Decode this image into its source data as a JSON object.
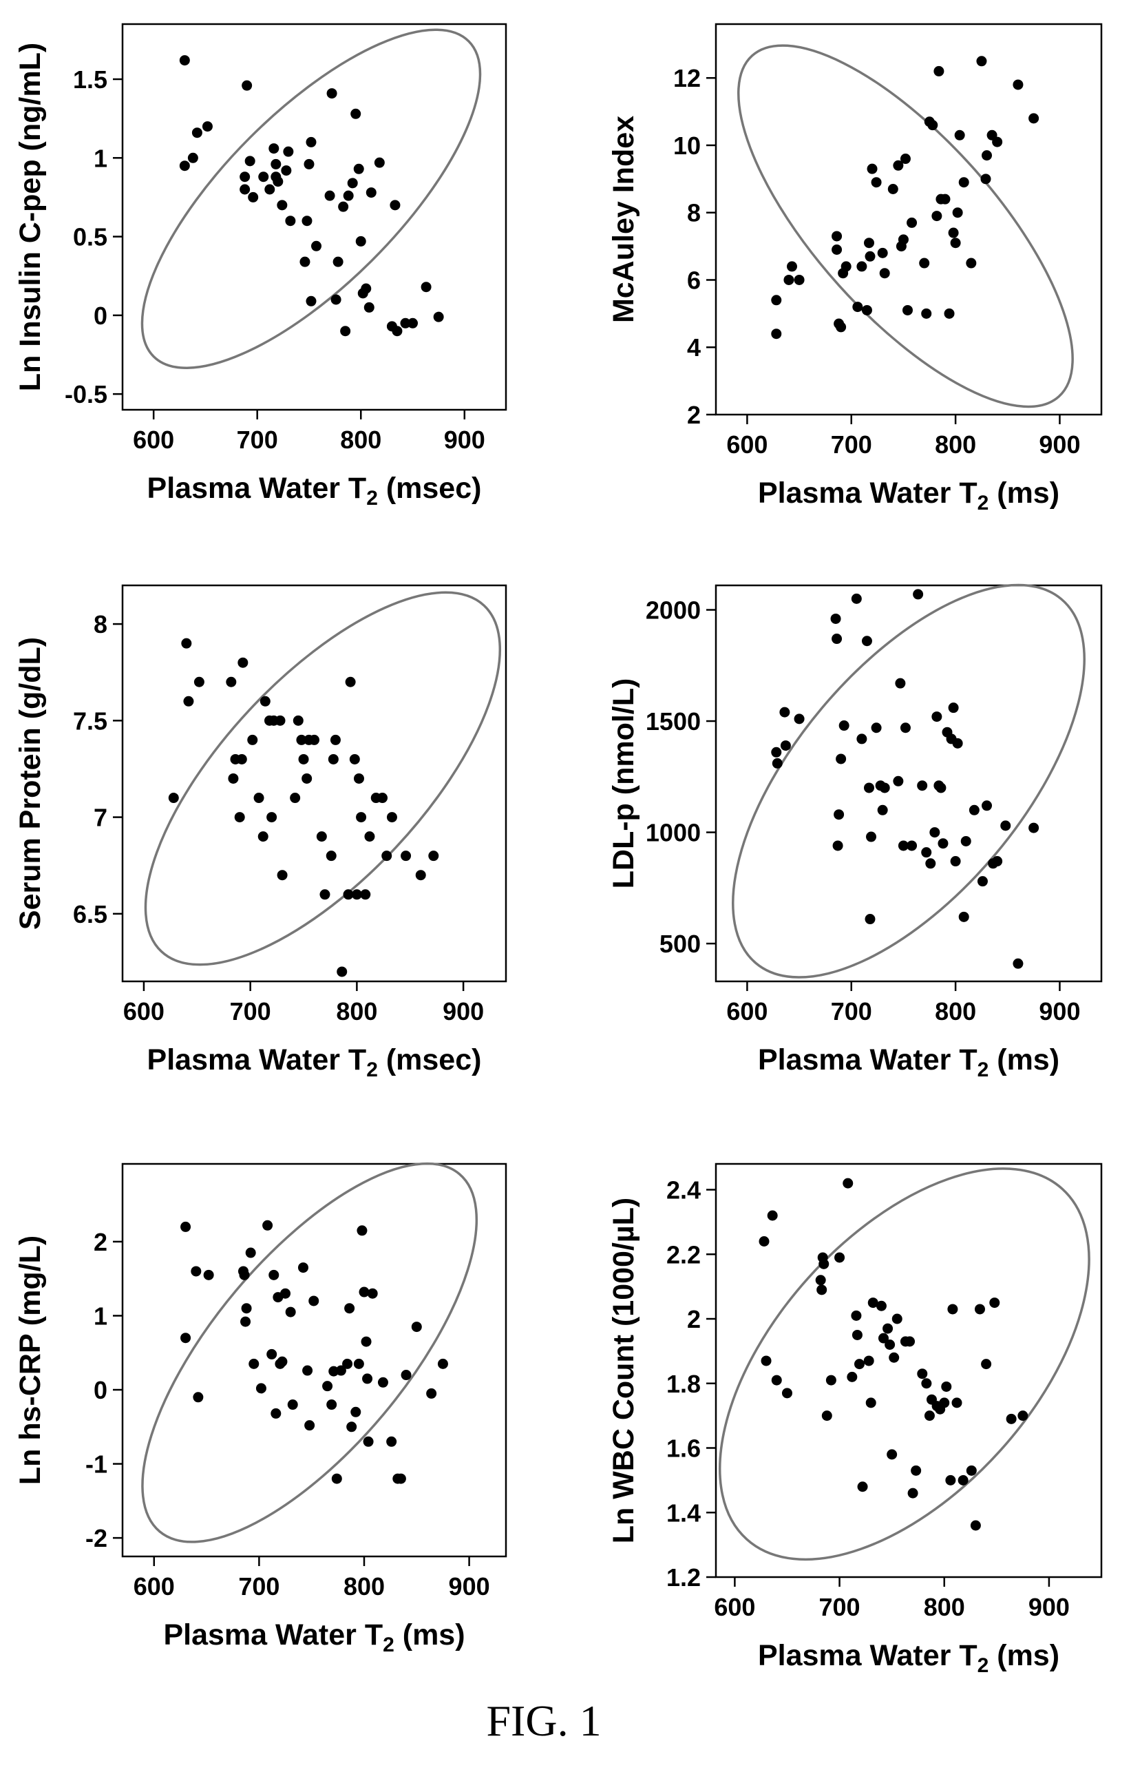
{
  "figure": {
    "caption": "FIG. 1"
  },
  "chart_data": [
    {
      "type": "scatter",
      "xlabel": "Plasma Water T",
      "xlabel_sub": "2",
      "xlabel_unit": " (msec)",
      "ylabel": "Ln Insulin C-pep (ng/mL)",
      "xlim": [
        570,
        940
      ],
      "ylim": [
        -0.6,
        1.85
      ],
      "xticks": [
        "600",
        "700",
        "800",
        "900"
      ],
      "yticks": [
        "-0.5",
        "0",
        "0.5",
        "1",
        "1.5"
      ],
      "ytick_values": [
        -0.5,
        0,
        0.5,
        1,
        1.5
      ],
      "ellipse": {
        "center": [
          752,
          0.74
        ],
        "semi_axes": [
          215,
          0.55
        ],
        "angle_deg": -45
      },
      "points": [
        [
          630,
          1.62
        ],
        [
          630,
          0.95
        ],
        [
          638,
          1.0
        ],
        [
          642,
          1.16
        ],
        [
          652,
          1.2
        ],
        [
          688,
          0.88
        ],
        [
          688,
          0.8
        ],
        [
          690,
          1.46
        ],
        [
          693,
          0.98
        ],
        [
          696,
          0.75
        ],
        [
          706,
          0.88
        ],
        [
          712,
          0.8
        ],
        [
          716,
          1.06
        ],
        [
          718,
          0.96
        ],
        [
          718,
          0.88
        ],
        [
          720,
          0.85
        ],
        [
          724,
          0.7
        ],
        [
          728,
          0.92
        ],
        [
          730,
          1.04
        ],
        [
          732,
          0.6
        ],
        [
          746,
          0.34
        ],
        [
          748,
          0.6
        ],
        [
          750,
          0.96
        ],
        [
          752,
          1.1
        ],
        [
          752,
          0.09
        ],
        [
          757,
          0.44
        ],
        [
          770,
          0.76
        ],
        [
          772,
          1.41
        ],
        [
          776,
          0.1
        ],
        [
          778,
          0.34
        ],
        [
          783,
          0.69
        ],
        [
          785,
          -0.1
        ],
        [
          788,
          0.76
        ],
        [
          792,
          0.84
        ],
        [
          795,
          1.28
        ],
        [
          798,
          0.93
        ],
        [
          800,
          0.47
        ],
        [
          802,
          0.14
        ],
        [
          805,
          0.17
        ],
        [
          808,
          0.05
        ],
        [
          810,
          0.78
        ],
        [
          818,
          0.97
        ],
        [
          830,
          -0.07
        ],
        [
          833,
          0.7
        ],
        [
          835,
          -0.1
        ],
        [
          843,
          -0.05
        ],
        [
          850,
          -0.05
        ],
        [
          863,
          0.18
        ],
        [
          875,
          -0.01
        ]
      ]
    },
    {
      "type": "scatter",
      "xlabel": "Plasma Water T",
      "xlabel_sub": "2",
      "xlabel_unit": " (ms)",
      "ylabel": "McAuley Index",
      "xlim": [
        570,
        940
      ],
      "ylim": [
        2.0,
        13.6
      ],
      "xticks": [
        "600",
        "700",
        "800",
        "900"
      ],
      "yticks": [
        "2",
        "4",
        "6",
        "8",
        "10",
        "12"
      ],
      "ytick_values": [
        2,
        4,
        6,
        8,
        10,
        12
      ],
      "ellipse": {
        "center": [
          752,
          7.6
        ],
        "semi_axes": [
          220,
          2.65
        ],
        "angle_deg": 48
      },
      "points": [
        [
          628,
          5.4
        ],
        [
          628,
          4.4
        ],
        [
          640,
          6.0
        ],
        [
          643,
          6.4
        ],
        [
          650,
          6.0
        ],
        [
          686,
          7.3
        ],
        [
          686,
          6.9
        ],
        [
          688,
          4.7
        ],
        [
          690,
          4.6
        ],
        [
          692,
          6.2
        ],
        [
          695,
          6.4
        ],
        [
          706,
          5.2
        ],
        [
          710,
          6.4
        ],
        [
          715,
          5.1
        ],
        [
          717,
          7.1
        ],
        [
          718,
          6.7
        ],
        [
          720,
          9.3
        ],
        [
          724,
          8.9
        ],
        [
          730,
          6.8
        ],
        [
          732,
          6.2
        ],
        [
          740,
          8.7
        ],
        [
          745,
          9.4
        ],
        [
          748,
          7.0
        ],
        [
          750,
          7.2
        ],
        [
          752,
          9.6
        ],
        [
          754,
          5.1
        ],
        [
          758,
          7.7
        ],
        [
          770,
          6.5
        ],
        [
          772,
          5.0
        ],
        [
          775,
          10.7
        ],
        [
          778,
          10.6
        ],
        [
          782,
          7.9
        ],
        [
          784,
          12.2
        ],
        [
          786,
          8.4
        ],
        [
          790,
          8.4
        ],
        [
          794,
          5.0
        ],
        [
          798,
          7.4
        ],
        [
          800,
          7.1
        ],
        [
          802,
          8.0
        ],
        [
          804,
          10.3
        ],
        [
          808,
          8.9
        ],
        [
          815,
          6.5
        ],
        [
          825,
          12.5
        ],
        [
          829,
          9.0
        ],
        [
          830,
          9.7
        ],
        [
          835,
          10.3
        ],
        [
          840,
          10.1
        ],
        [
          860,
          11.8
        ],
        [
          875,
          10.8
        ]
      ]
    },
    {
      "type": "scatter",
      "xlabel": "Plasma Water T",
      "xlabel_sub": "2",
      "xlabel_unit": " (msec)",
      "ylabel": "Serum Protein (g/dL)",
      "xlim": [
        580,
        940
      ],
      "ylim": [
        6.15,
        8.2
      ],
      "xticks": [
        "600",
        "700",
        "800",
        "900"
      ],
      "yticks": [
        "6.5",
        "7",
        "7.5",
        "8"
      ],
      "ytick_values": [
        6.5,
        7,
        7.5,
        8
      ],
      "ellipse": {
        "center": [
          768,
          7.2
        ],
        "semi_axes": [
          222,
          0.52
        ],
        "angle_deg": -47
      },
      "points": [
        [
          628,
          7.1
        ],
        [
          640,
          7.9
        ],
        [
          642,
          7.6
        ],
        [
          652,
          7.7
        ],
        [
          682,
          7.7
        ],
        [
          684,
          7.2
        ],
        [
          686,
          7.3
        ],
        [
          690,
          7.0
        ],
        [
          692,
          7.3
        ],
        [
          693,
          7.8
        ],
        [
          702,
          7.4
        ],
        [
          708,
          7.1
        ],
        [
          712,
          6.9
        ],
        [
          714,
          7.6
        ],
        [
          718,
          7.5
        ],
        [
          720,
          7.0
        ],
        [
          722,
          7.5
        ],
        [
          728,
          7.5
        ],
        [
          730,
          6.7
        ],
        [
          742,
          7.1
        ],
        [
          745,
          7.5
        ],
        [
          748,
          7.4
        ],
        [
          750,
          7.3
        ],
        [
          753,
          7.2
        ],
        [
          755,
          7.4
        ],
        [
          760,
          7.4
        ],
        [
          767,
          6.9
        ],
        [
          770,
          6.6
        ],
        [
          776,
          6.8
        ],
        [
          778,
          7.3
        ],
        [
          780,
          7.4
        ],
        [
          786,
          6.2
        ],
        [
          792,
          6.6
        ],
        [
          794,
          7.7
        ],
        [
          798,
          7.3
        ],
        [
          800,
          6.6
        ],
        [
          802,
          7.2
        ],
        [
          804,
          7.0
        ],
        [
          808,
          6.6
        ],
        [
          812,
          6.9
        ],
        [
          818,
          7.1
        ],
        [
          824,
          7.1
        ],
        [
          828,
          6.8
        ],
        [
          833,
          7.0
        ],
        [
          846,
          6.8
        ],
        [
          860,
          6.7
        ],
        [
          872,
          6.8
        ]
      ]
    },
    {
      "type": "scatter",
      "xlabel": "Plasma Water T",
      "xlabel_sub": "2",
      "xlabel_unit": " (ms)",
      "ylabel": "LDL-p (nmol/L)",
      "xlim": [
        570,
        940
      ],
      "ylim": [
        330,
        2110
      ],
      "xticks": [
        "600",
        "700",
        "800",
        "900"
      ],
      "yticks": [
        "500",
        "1000",
        "1500",
        "2000"
      ],
      "ytick_values": [
        500,
        1000,
        1500,
        2000
      ],
      "ellipse": {
        "center": [
          755,
          1230
        ],
        "semi_axes": [
          228,
          510
        ],
        "angle_deg": -50
      },
      "points": [
        [
          628,
          1360
        ],
        [
          629,
          1310
        ],
        [
          636,
          1540
        ],
        [
          637,
          1390
        ],
        [
          650,
          1510
        ],
        [
          685,
          1960
        ],
        [
          686,
          1870
        ],
        [
          687,
          940
        ],
        [
          688,
          1080
        ],
        [
          690,
          1330
        ],
        [
          693,
          1480
        ],
        [
          705,
          2050
        ],
        [
          710,
          1420
        ],
        [
          715,
          1860
        ],
        [
          717,
          1200
        ],
        [
          718,
          610
        ],
        [
          719,
          980
        ],
        [
          724,
          1470
        ],
        [
          728,
          1210
        ],
        [
          730,
          1100
        ],
        [
          732,
          1200
        ],
        [
          745,
          1230
        ],
        [
          747,
          1670
        ],
        [
          750,
          940
        ],
        [
          752,
          1470
        ],
        [
          758,
          940
        ],
        [
          764,
          2070
        ],
        [
          768,
          1210
        ],
        [
          772,
          910
        ],
        [
          776,
          860
        ],
        [
          780,
          1000
        ],
        [
          782,
          1520
        ],
        [
          784,
          1210
        ],
        [
          786,
          1200
        ],
        [
          788,
          950
        ],
        [
          792,
          1450
        ],
        [
          796,
          1420
        ],
        [
          798,
          1560
        ],
        [
          800,
          870
        ],
        [
          802,
          1400
        ],
        [
          808,
          620
        ],
        [
          810,
          960
        ],
        [
          818,
          1100
        ],
        [
          826,
          780
        ],
        [
          830,
          1120
        ],
        [
          836,
          860
        ],
        [
          840,
          870
        ],
        [
          848,
          1030
        ],
        [
          860,
          410
        ],
        [
          875,
          1020
        ]
      ]
    },
    {
      "type": "scatter",
      "xlabel": "Plasma Water T",
      "xlabel_sub": "2",
      "xlabel_unit": " (ms)",
      "ylabel": "Ln hs-CRP (mg/L)",
      "xlim": [
        570,
        935
      ],
      "ylim": [
        -2.25,
        3.05
      ],
      "xticks": [
        "600",
        "700",
        "800",
        "900"
      ],
      "yticks": [
        "-2",
        "-1",
        "0",
        "1",
        "2"
      ],
      "ytick_values": [
        -2,
        -1,
        0,
        1,
        2
      ],
      "ellipse": {
        "center": [
          748,
          0.5
        ],
        "semi_axes": [
          222,
          1.3
        ],
        "angle_deg": -50
      },
      "points": [
        [
          630,
          2.2
        ],
        [
          630,
          0.7
        ],
        [
          640,
          1.6
        ],
        [
          642,
          -0.1
        ],
        [
          652,
          1.55
        ],
        [
          685,
          1.6
        ],
        [
          686,
          1.55
        ],
        [
          687,
          0.92
        ],
        [
          688,
          1.1
        ],
        [
          692,
          1.85
        ],
        [
          695,
          0.35
        ],
        [
          702,
          0.02
        ],
        [
          708,
          2.22
        ],
        [
          712,
          0.48
        ],
        [
          714,
          1.55
        ],
        [
          716,
          -0.32
        ],
        [
          718,
          1.25
        ],
        [
          720,
          0.35
        ],
        [
          722,
          0.38
        ],
        [
          725,
          1.3
        ],
        [
          730,
          1.05
        ],
        [
          732,
          -0.2
        ],
        [
          742,
          1.65
        ],
        [
          746,
          0.26
        ],
        [
          748,
          -0.48
        ],
        [
          752,
          1.2
        ],
        [
          765,
          0.05
        ],
        [
          769,
          -0.2
        ],
        [
          771,
          0.25
        ],
        [
          774,
          -1.2
        ],
        [
          778,
          0.26
        ],
        [
          784,
          0.35
        ],
        [
          786,
          1.1
        ],
        [
          788,
          -0.5
        ],
        [
          792,
          -0.3
        ],
        [
          795,
          0.35
        ],
        [
          798,
          2.15
        ],
        [
          800,
          1.32
        ],
        [
          802,
          0.65
        ],
        [
          803,
          0.15
        ],
        [
          804,
          -0.7
        ],
        [
          808,
          1.3
        ],
        [
          818,
          0.1
        ],
        [
          826,
          -0.7
        ],
        [
          832,
          -1.2
        ],
        [
          835,
          -1.2
        ],
        [
          840,
          0.2
        ],
        [
          850,
          0.85
        ],
        [
          864,
          -0.05
        ],
        [
          875,
          0.35
        ]
      ]
    },
    {
      "type": "scatter",
      "xlabel": "Plasma Water T",
      "xlabel_sub": "2",
      "xlabel_unit": " (ms)",
      "ylabel": "Ln WBC Count (1000/µL)",
      "xlim": [
        582,
        950
      ],
      "ylim": [
        1.2,
        2.48
      ],
      "xticks": [
        "600",
        "700",
        "800",
        "900"
      ],
      "yticks": [
        "1.2",
        "1.4",
        "1.6",
        "1.8",
        "2",
        "2.2",
        "2.4"
      ],
      "ytick_values": [
        1.2,
        1.4,
        1.6,
        1.8,
        2.0,
        2.2,
        2.4
      ],
      "ellipse": {
        "center": [
          762,
          1.86
        ],
        "semi_axes": [
          225,
          0.4
        ],
        "angle_deg": -48
      },
      "points": [
        [
          628,
          2.24
        ],
        [
          630,
          1.87
        ],
        [
          636,
          2.32
        ],
        [
          640,
          1.81
        ],
        [
          650,
          1.77
        ],
        [
          682,
          2.12
        ],
        [
          683,
          2.09
        ],
        [
          684,
          2.19
        ],
        [
          685,
          2.17
        ],
        [
          688,
          1.7
        ],
        [
          692,
          1.81
        ],
        [
          700,
          2.19
        ],
        [
          708,
          2.42
        ],
        [
          712,
          1.82
        ],
        [
          716,
          2.01
        ],
        [
          717,
          1.95
        ],
        [
          719,
          1.86
        ],
        [
          722,
          1.48
        ],
        [
          728,
          1.87
        ],
        [
          730,
          1.74
        ],
        [
          732,
          2.05
        ],
        [
          740,
          2.04
        ],
        [
          742,
          1.94
        ],
        [
          746,
          1.97
        ],
        [
          748,
          1.92
        ],
        [
          750,
          1.58
        ],
        [
          752,
          1.88
        ],
        [
          755,
          2.0
        ],
        [
          763,
          1.93
        ],
        [
          767,
          1.93
        ],
        [
          770,
          1.46
        ],
        [
          773,
          1.53
        ],
        [
          779,
          1.83
        ],
        [
          783,
          1.8
        ],
        [
          786,
          1.7
        ],
        [
          788,
          1.75
        ],
        [
          793,
          1.73
        ],
        [
          796,
          1.72
        ],
        [
          800,
          1.74
        ],
        [
          802,
          1.79
        ],
        [
          806,
          1.5
        ],
        [
          808,
          2.03
        ],
        [
          812,
          1.74
        ],
        [
          818,
          1.5
        ],
        [
          826,
          1.53
        ],
        [
          830,
          1.36
        ],
        [
          834,
          2.03
        ],
        [
          840,
          1.86
        ],
        [
          848,
          2.05
        ],
        [
          864,
          1.69
        ],
        [
          875,
          1.7
        ]
      ]
    }
  ]
}
